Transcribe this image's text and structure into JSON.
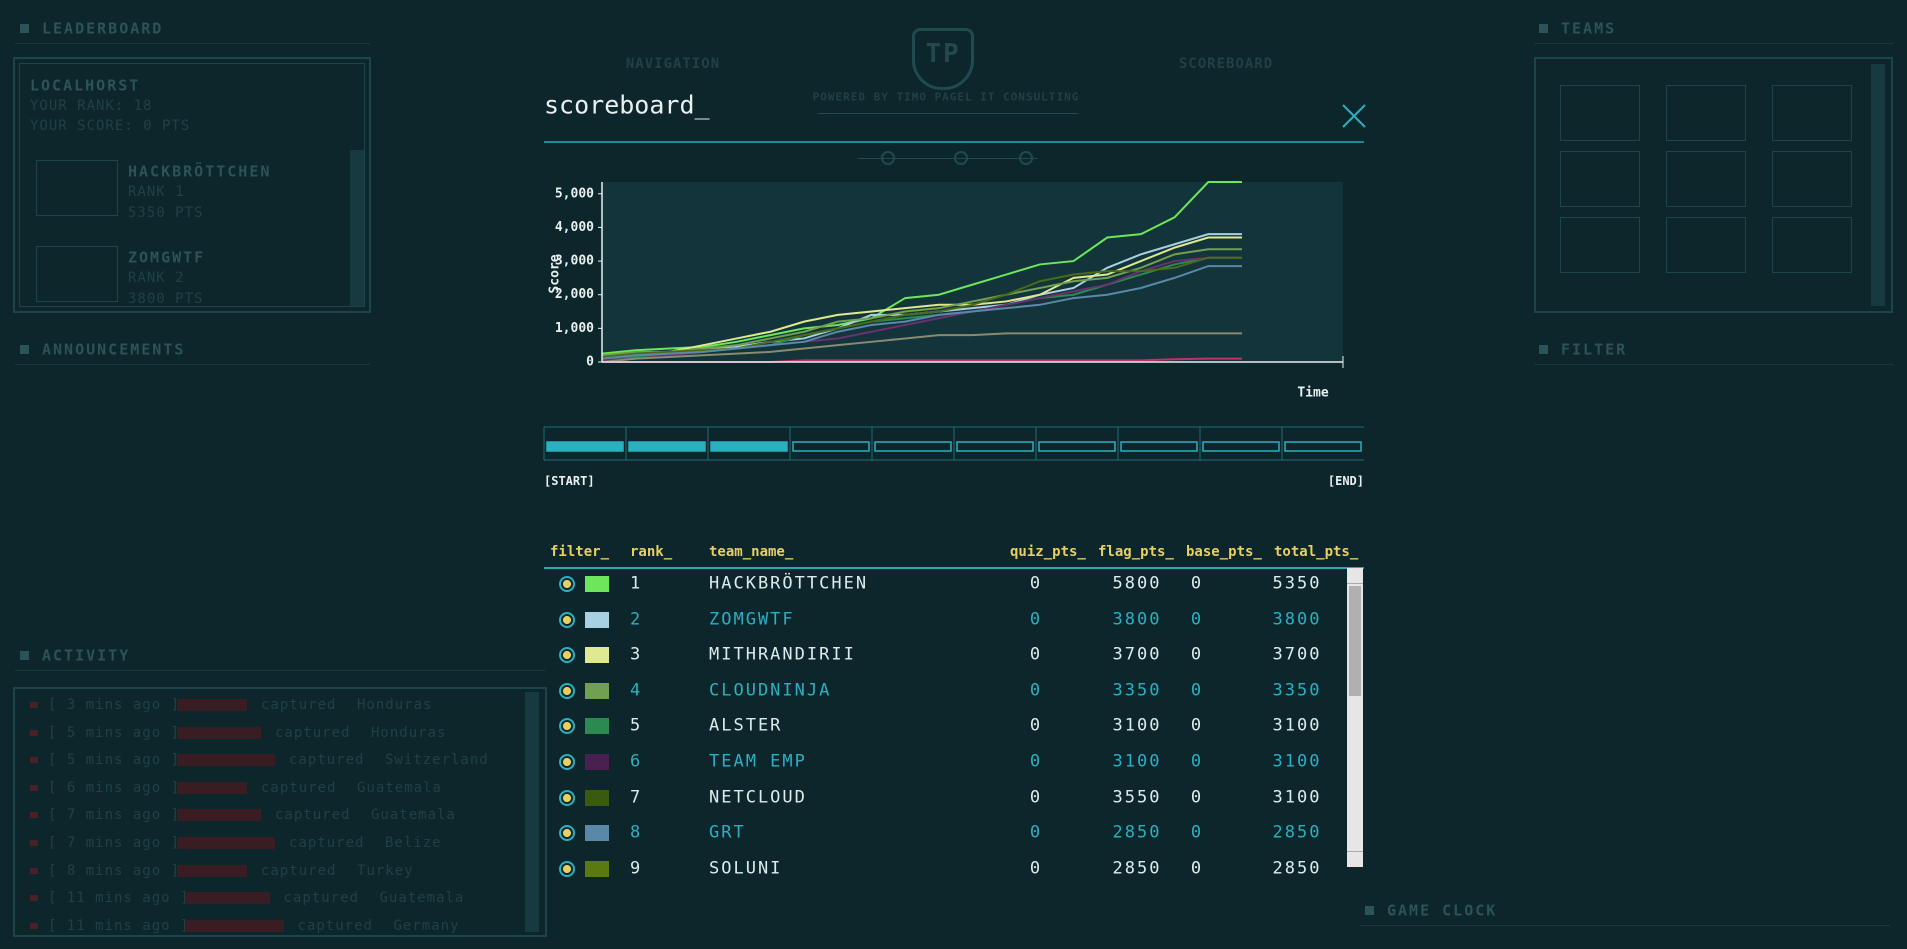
{
  "background": {
    "leaderboard": {
      "title": "LEADERBOARD",
      "user": "LOCALHORST",
      "rank": "YOUR RANK: 18",
      "score": "YOUR SCORE: 0 PTS",
      "entries": [
        {
          "name": "HACKBRÖTTCHEN",
          "rank": "RANK 1",
          "points": "5350 PTS"
        },
        {
          "name": "ZOMGWTF",
          "rank": "RANK 2",
          "points": "3800 PTS"
        }
      ]
    },
    "announcements": {
      "title": "ANNOUNCEMENTS"
    },
    "activity": {
      "title": "ACTIVITY",
      "entries": [
        {
          "time": "[ 3 mins ago ]",
          "action": "captured",
          "country": "Honduras"
        },
        {
          "time": "[ 5 mins ago ]",
          "action": "captured",
          "country": "Honduras"
        },
        {
          "time": "[ 5 mins ago ]",
          "action": "captured",
          "country": "Switzerland"
        },
        {
          "time": "[ 6 mins ago ]",
          "action": "captured",
          "country": "Guatemala"
        },
        {
          "time": "[ 7 mins ago ]",
          "action": "captured",
          "country": "Guatemala"
        },
        {
          "time": "[ 7 mins ago ]",
          "action": "captured",
          "country": "Belize"
        },
        {
          "time": "[ 8 mins ago ]",
          "action": "captured",
          "country": "Turkey"
        },
        {
          "time": "[ 11 mins ago ]",
          "action": "captured",
          "country": "Guatemala"
        },
        {
          "time": "[ 11 mins ago ]",
          "action": "captured",
          "country": "Germany"
        }
      ]
    },
    "teams": {
      "title": "TEAMS"
    },
    "filter": {
      "title": "FILTER"
    },
    "game_clock": {
      "title": "GAME CLOCK"
    },
    "nav": {
      "logo": "TP",
      "navigation": "NAVIGATION",
      "scoreboard": "SCOREBOARD",
      "powered_by": "POWERED BY TIMO PAGEL IT CONSULTING"
    }
  },
  "modal": {
    "title": "scoreboard_",
    "timeline": {
      "start": "[START]",
      "end": "[END]"
    }
  },
  "chart_data": {
    "type": "line",
    "xlabel": "Time",
    "ylabel": "Score",
    "categories": [
      null,
      null,
      null,
      null,
      null,
      null,
      null,
      null,
      null,
      null,
      null,
      null,
      null,
      null,
      null,
      null,
      null,
      null,
      null,
      null,
      null,
      null,
      null
    ],
    "ylim": [
      0,
      5350
    ],
    "yticks": [
      0,
      {
        "value": 1000,
        "label": "1,000"
      },
      {
        "value": 2000,
        "label": "2,000"
      },
      {
        "value": 3000,
        "label": "3,000"
      },
      {
        "value": 4000,
        "label": "4,000"
      },
      {
        "value": 5000,
        "label": "5,000"
      }
    ],
    "series": [
      {
        "color": "#6ce65a",
        "values": [
          250,
          350,
          400,
          450,
          600,
          800,
          1000,
          1100,
          1300,
          1900,
          2000,
          2300,
          2600,
          2900,
          3000,
          3700,
          3800,
          4300,
          5350,
          5350,
          null,
          null,
          null
        ]
      },
      {
        "color": "#a8d0e0",
        "values": [
          150,
          250,
          300,
          350,
          450,
          600,
          700,
          1000,
          1400,
          1400,
          1500,
          1600,
          1700,
          2000,
          2200,
          2800,
          3200,
          3500,
          3800,
          3800,
          null,
          null,
          null
        ]
      },
      {
        "color": "#e0e890",
        "values": [
          100,
          200,
          300,
          500,
          700,
          900,
          1200,
          1400,
          1500,
          1600,
          1700,
          1700,
          1800,
          2000,
          2500,
          2600,
          3000,
          3400,
          3700,
          3700,
          null,
          null,
          null
        ]
      },
      {
        "color": "#70a050",
        "values": [
          200,
          300,
          300,
          400,
          500,
          700,
          900,
          1200,
          1300,
          1500,
          1600,
          1800,
          2000,
          2200,
          2400,
          2500,
          2800,
          3200,
          3350,
          3350,
          null,
          null,
          null
        ]
      },
      {
        "color": "#2a8a50",
        "values": [
          100,
          150,
          200,
          300,
          400,
          500,
          800,
          1000,
          1200,
          1300,
          1400,
          1500,
          1700,
          1900,
          2000,
          2300,
          2600,
          2900,
          3100,
          3100,
          null,
          null,
          null
        ]
      },
      {
        "color": "#6a3070",
        "values": [
          50,
          100,
          200,
          300,
          400,
          500,
          600,
          700,
          900,
          1100,
          1300,
          1500,
          1700,
          1900,
          2100,
          2300,
          2700,
          3000,
          3100,
          3100,
          null,
          null,
          null
        ]
      },
      {
        "color": "#4a6a18",
        "values": [
          150,
          250,
          300,
          350,
          400,
          600,
          800,
          1000,
          1200,
          1400,
          1500,
          1700,
          2000,
          2400,
          2600,
          2700,
          2700,
          2800,
          3100,
          3100,
          null,
          null,
          null
        ]
      },
      {
        "color": "#5a88a8",
        "values": [
          100,
          200,
          250,
          300,
          400,
          500,
          600,
          900,
          1100,
          1200,
          1400,
          1500,
          1600,
          1700,
          1900,
          2000,
          2200,
          2500,
          2850,
          2850,
          null,
          null,
          null
        ]
      },
      {
        "color": "#8a8a70",
        "values": [
          0,
          100,
          150,
          200,
          250,
          300,
          400,
          500,
          600,
          700,
          800,
          800,
          850,
          850,
          850,
          850,
          850,
          850,
          850,
          850,
          null,
          null,
          null
        ]
      },
      {
        "color": "#c0306a",
        "values": [
          0,
          0,
          0,
          0,
          0,
          0,
          50,
          50,
          50,
          50,
          50,
          50,
          50,
          50,
          50,
          50,
          50,
          80,
          100,
          100,
          null,
          null,
          null
        ]
      }
    ]
  },
  "table": {
    "headers": [
      "filter_",
      "rank_",
      "team_name_",
      "quiz_pts_",
      "flag_pts_",
      "base_pts_",
      "total_pts_"
    ],
    "rows": [
      {
        "color": "#6ce65a",
        "cells": [
          1,
          "HACKBRÖTTCHEN",
          0,
          5800,
          0,
          5350
        ]
      },
      {
        "color": "#a8d0e0",
        "cells": [
          2,
          "ZOMGWTF",
          0,
          3800,
          0,
          3800
        ]
      },
      {
        "color": "#e0e890",
        "cells": [
          3,
          "MITHRANDIRII",
          0,
          3700,
          0,
          3700
        ]
      },
      {
        "color": "#70a050",
        "cells": [
          4,
          "CLOUDNINJA",
          0,
          3350,
          0,
          3350
        ]
      },
      {
        "color": "#2a8a50",
        "cells": [
          5,
          "ALSTER",
          0,
          3100,
          0,
          3100
        ]
      },
      {
        "color": "#4a2050",
        "cells": [
          6,
          "TEAM EMP",
          0,
          3100,
          0,
          3100
        ]
      },
      {
        "color": "#3a5a10",
        "cells": [
          7,
          "NETCLOUD",
          0,
          3550,
          0,
          3100
        ]
      },
      {
        "color": "#5a88a8",
        "cells": [
          8,
          "GRT",
          0,
          2850,
          0,
          2850
        ]
      },
      {
        "color": "#5a7a10",
        "cells": [
          9,
          "SOLUNI",
          0,
          2850,
          0,
          2850
        ]
      }
    ]
  }
}
